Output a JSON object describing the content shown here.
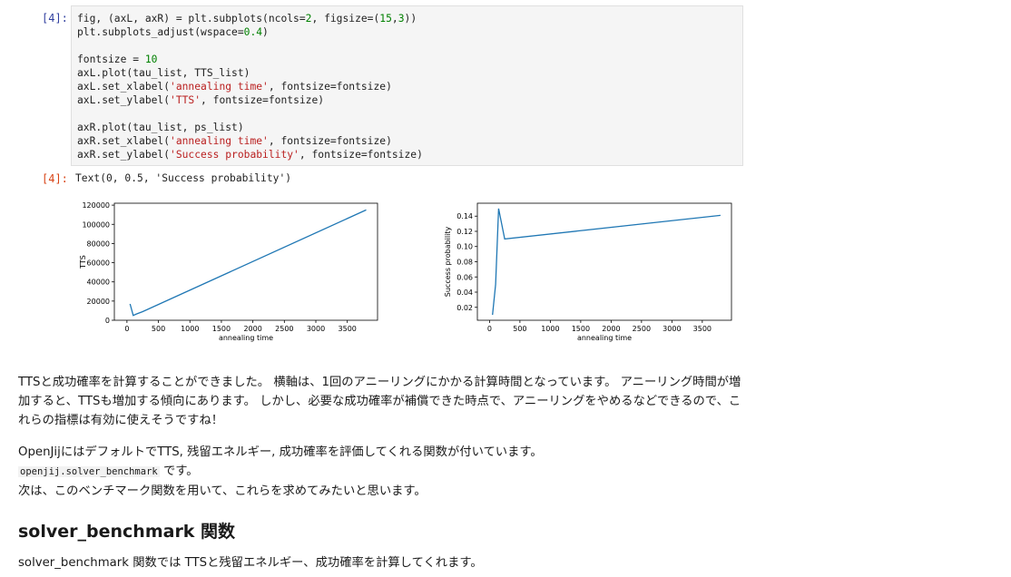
{
  "cell_in": {
    "prompt": "[4]:",
    "lines": [
      [
        {
          "t": "fig, (axL, axR) = plt.subplots(ncols="
        },
        {
          "t": "2",
          "c": "num"
        },
        {
          "t": ", figsize=("
        },
        {
          "t": "15",
          "c": "num"
        },
        {
          "t": ","
        },
        {
          "t": "3",
          "c": "num"
        },
        {
          "t": "))"
        }
      ],
      [
        {
          "t": "plt.subplots_adjust(wspace="
        },
        {
          "t": "0.4",
          "c": "num"
        },
        {
          "t": ")"
        }
      ],
      [
        {
          "t": ""
        }
      ],
      [
        {
          "t": "fontsize = "
        },
        {
          "t": "10",
          "c": "num"
        }
      ],
      [
        {
          "t": "axL.plot(tau_list, TTS_list)"
        }
      ],
      [
        {
          "t": "axL.set_xlabel("
        },
        {
          "t": "'annealing time'",
          "c": "str"
        },
        {
          "t": ", fontsize=fontsize)"
        }
      ],
      [
        {
          "t": "axL.set_ylabel("
        },
        {
          "t": "'TTS'",
          "c": "str"
        },
        {
          "t": ", fontsize=fontsize)"
        }
      ],
      [
        {
          "t": ""
        }
      ],
      [
        {
          "t": "axR.plot(tau_list, ps_list)"
        }
      ],
      [
        {
          "t": "axR.set_xlabel("
        },
        {
          "t": "'annealing time'",
          "c": "str"
        },
        {
          "t": ", fontsize=fontsize)"
        }
      ],
      [
        {
          "t": "axR.set_ylabel("
        },
        {
          "t": "'Success probability'",
          "c": "str"
        },
        {
          "t": ", fontsize=fontsize)"
        }
      ]
    ]
  },
  "cell_out": {
    "prompt": "[4]:",
    "text": "Text(0, 0.5, 'Success probability')"
  },
  "chart_data": [
    {
      "type": "line",
      "title": "",
      "xlabel": "annealing time",
      "ylabel": "TTS",
      "x": [
        50,
        100,
        150,
        250,
        3800
      ],
      "y": [
        17000,
        5000,
        6500,
        9000,
        115000
      ],
      "xlim": [
        -200,
        3980
      ],
      "ylim": [
        0,
        122000
      ],
      "xticks": [
        0,
        500,
        1000,
        1500,
        2000,
        2500,
        3000,
        3500
      ],
      "yticks": [
        0,
        20000,
        40000,
        60000,
        80000,
        100000,
        120000
      ],
      "color": "#1f77b4",
      "grid": false
    },
    {
      "type": "line",
      "title": "",
      "xlabel": "annealing time",
      "ylabel": "Success probability",
      "x": [
        50,
        100,
        150,
        250,
        3800
      ],
      "y": [
        0.01,
        0.05,
        0.15,
        0.11,
        0.141
      ],
      "xlim": [
        -200,
        3980
      ],
      "ylim": [
        0.003,
        0.157
      ],
      "xticks": [
        0,
        500,
        1000,
        1500,
        2000,
        2500,
        3000,
        3500
      ],
      "yticks": [
        0.02,
        0.04,
        0.06,
        0.08,
        0.1,
        0.12,
        0.14
      ],
      "ytick_labels": [
        "0.02",
        "0.04",
        "0.06",
        "0.08",
        "0.10",
        "0.12",
        "0.14"
      ],
      "color": "#1f77b4",
      "grid": false
    }
  ],
  "markdown": {
    "para1": "TTSと成功確率を計算することができました。 横軸は、1回のアニーリングにかかる計算時間となっています。 アニーリング時間が増加すると、TTSも増加する傾向にあります。 しかし、必要な成功確率が補償できた時点で、アニーリングをやめるなどできるので、これらの指標は有効に使えそうですね！",
    "para2_line1": "OpenJijにはデフォルトでTTS, 残留エネルギー, 成功確率を評価してくれる関数が付いています。",
    "para2_code": "openjij.solver_benchmark",
    "para2_code_suffix": " です。",
    "para2_line3": "次は、このベンチマーク関数を用いて、これらを求めてみたいと思います。",
    "heading": "solver_benchmark 関数",
    "para3": "solver_benchmark 関数では TTSと残留エネルギー、成功確率を計算してくれます。"
  }
}
